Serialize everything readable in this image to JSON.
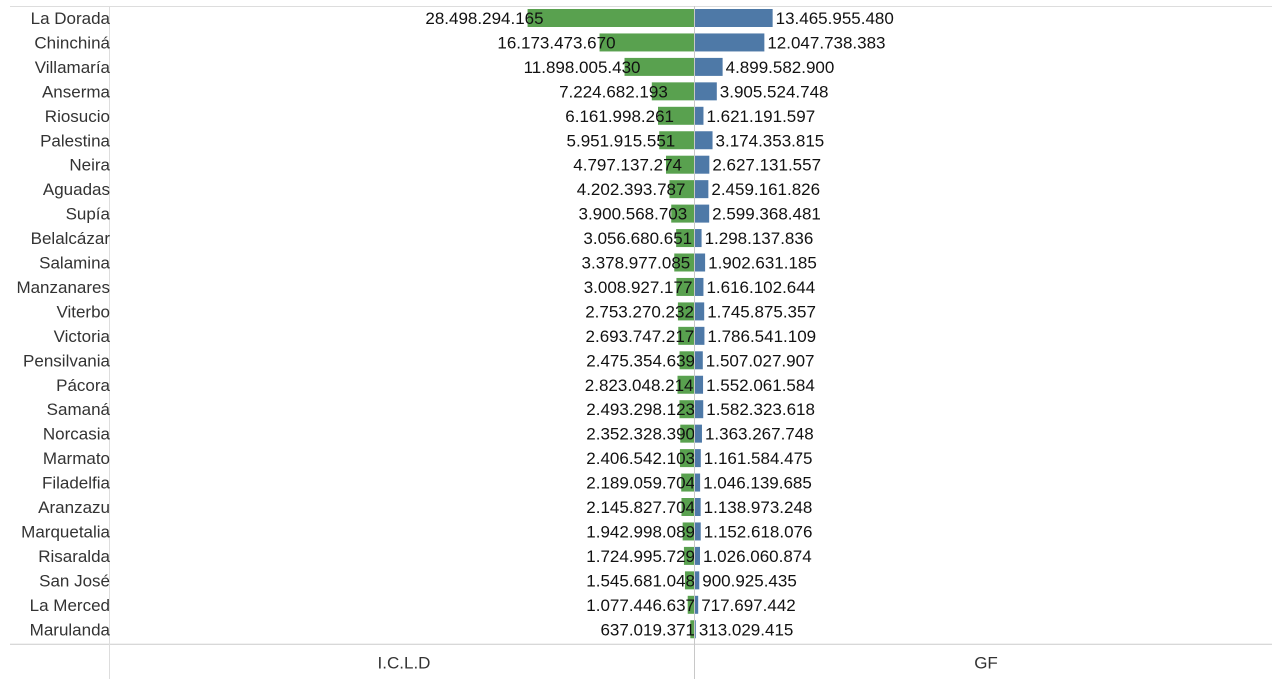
{
  "chart_data": {
    "type": "bar",
    "categories": [
      "La Dorada",
      "Chinchiná",
      "Villamaría",
      "Anserma",
      "Riosucio",
      "Palestina",
      "Neira",
      "Aguadas",
      "Supía",
      "Belalcázar",
      "Salamina",
      "Manzanares",
      "Viterbo",
      "Victoria",
      "Pensilvania",
      "Pácora",
      "Samaná",
      "Norcasia",
      "Marmato",
      "Filadelfia",
      "Aranzazu",
      "Marquetalia",
      "Risaralda",
      "San José",
      "La Merced",
      "Marulanda"
    ],
    "series": [
      {
        "name": "I.C.L.D",
        "values": [
          28498294165,
          16173473670,
          11898005430,
          7224682193,
          6161998261,
          5951915551,
          4797137274,
          4202393787,
          3900568703,
          3056680651,
          3378977085,
          3008927177,
          2753270232,
          2693747217,
          2475354639,
          2823048214,
          2493298123,
          2352328390,
          2406542103,
          2189059704,
          2145827704,
          1942998089,
          1724995729,
          1545681048,
          1077446637,
          637019371
        ],
        "labels": [
          "28.498.294.165",
          "16.173.473.670",
          "11.898.005.430",
          "7.224.682.193",
          "6.161.998.261",
          "5.951.915.551",
          "4.797.137.274",
          "4.202.393.787",
          "3.900.568.703",
          "3.056.680.651",
          "3.378.977.085",
          "3.008.927.177",
          "2.753.270.232",
          "2.693.747.217",
          "2.475.354.639",
          "2.823.048.214",
          "2.493.298.123",
          "2.352.328.390",
          "2.406.542.103",
          "2.189.059.704",
          "2.145.827.704",
          "1.942.998.089",
          "1.724.995.729",
          "1.545.681.048",
          "1.077.446.637",
          "637.019.371"
        ],
        "color": "#59a14f"
      },
      {
        "name": "GF",
        "values": [
          13465955480,
          12047738383,
          4899582900,
          3905524748,
          1621191597,
          3174353815,
          2627131557,
          2459161826,
          2599368481,
          1298137836,
          1902631185,
          1616102644,
          1745875357,
          1786541109,
          1507027907,
          1552061584,
          1582323618,
          1363267748,
          1161584475,
          1046139685,
          1138973248,
          1152618076,
          1026060874,
          900925435,
          717697442,
          313029415
        ],
        "labels": [
          "13.465.955.480",
          "12.047.738.383",
          "4.899.582.900",
          "3.905.524.748",
          "1.621.191.597",
          "3.174.353.815",
          "2.627.131.557",
          "2.459.161.826",
          "2.599.368.481",
          "1.298.137.836",
          "1.902.631.185",
          "1.616.102.644",
          "1.745.875.357",
          "1.786.541.109",
          "1.507.027.907",
          "1.552.061.584",
          "1.582.323.618",
          "1.363.267.748",
          "1.161.584.475",
          "1.046.139.685",
          "1.138.973.248",
          "1.152.618.076",
          "1.026.060.874",
          "900.925.435",
          "717.697.442",
          "313.029.415"
        ],
        "color": "#4e79a7"
      }
    ],
    "axis_max": 100000000000,
    "grid": false,
    "legend": "none"
  }
}
